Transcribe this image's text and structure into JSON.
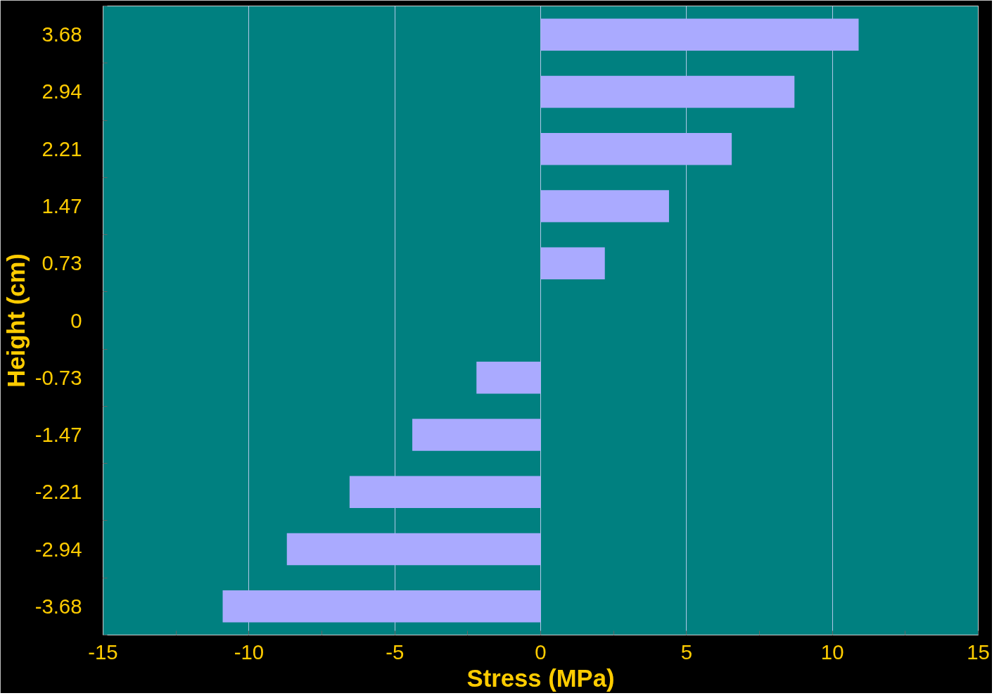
{
  "chart_data": {
    "type": "bar",
    "orientation": "horizontal",
    "xlabel": "Stress (MPa)",
    "ylabel": "Height (cm)",
    "categories": [
      "3.68",
      "2.94",
      "2.21",
      "1.47",
      "0.73",
      "0",
      "-0.73",
      "-1.47",
      "-2.21",
      "-2.94",
      "-3.68"
    ],
    "values": [
      10.9,
      8.7,
      6.55,
      4.4,
      2.2,
      null,
      -2.2,
      -4.4,
      -6.55,
      -8.7,
      -10.9
    ],
    "color": "#aaaaff",
    "xlim": [
      -15,
      15
    ],
    "xticks": [
      -15,
      {
        "value": -12.5,
        "label": null
      },
      -10,
      {
        "value": -7.5,
        "label": null
      },
      -5,
      {
        "value": -2.5,
        "label": null
      },
      0,
      {
        "value": 2.5,
        "label": null
      },
      5,
      {
        "value": 7.5,
        "label": null
      },
      10,
      {
        "value": 12.5,
        "label": null
      },
      15
    ],
    "grid": "x"
  }
}
